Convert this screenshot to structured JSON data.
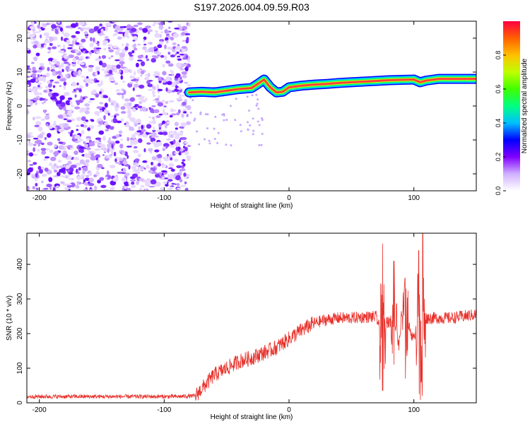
{
  "title": "S197.2026.004.09.59.R03",
  "chart_data": [
    {
      "type": "heatmap",
      "xlabel": "Height of straight line (km)",
      "ylabel": "Frequency (Hz)",
      "xlim": [
        -210,
        150
      ],
      "ylim": [
        -25,
        25
      ],
      "x_ticks": [
        -200,
        -100,
        0,
        100
      ],
      "x_tick_labels": [
        "-200",
        "-100",
        "0",
        "100"
      ],
      "y_ticks": [
        -20,
        -10,
        0,
        10,
        20
      ],
      "y_tick_labels": [
        "-20",
        "-10",
        "0",
        "10",
        "20"
      ],
      "colorbar": {
        "label": "Normalized spectral amplitude",
        "range": [
          0,
          1
        ],
        "ticks": [
          0,
          0.2,
          0.4,
          0.6,
          0.8
        ],
        "tick_labels": [
          "0.0",
          "0.2",
          "0.4",
          "0.6",
          "0.8"
        ],
        "stops": [
          "#ffffff",
          "#d0b0ff",
          "#8000ff",
          "#0000ff",
          "#00c0ff",
          "#00ff80",
          "#40ff00",
          "#c0ff00",
          "#ffc000",
          "#ff6000",
          "#ff0040"
        ]
      },
      "noise_region_x": [
        -210,
        -80
      ],
      "tone_track": [
        {
          "x": -80,
          "f": 4.0
        },
        {
          "x": -70,
          "f": 4.2
        },
        {
          "x": -60,
          "f": 4.0
        },
        {
          "x": -50,
          "f": 4.5
        },
        {
          "x": -40,
          "f": 5.0
        },
        {
          "x": -30,
          "f": 5.3
        },
        {
          "x": -25,
          "f": 6.5
        },
        {
          "x": -20,
          "f": 7.8
        },
        {
          "x": -15,
          "f": 5.5
        },
        {
          "x": -10,
          "f": 4.0
        },
        {
          "x": -5,
          "f": 4.2
        },
        {
          "x": 0,
          "f": 5.5
        },
        {
          "x": 10,
          "f": 6.0
        },
        {
          "x": 20,
          "f": 6.3
        },
        {
          "x": 30,
          "f": 6.5
        },
        {
          "x": 40,
          "f": 6.8
        },
        {
          "x": 50,
          "f": 7.0
        },
        {
          "x": 60,
          "f": 7.2
        },
        {
          "x": 70,
          "f": 7.4
        },
        {
          "x": 80,
          "f": 7.6
        },
        {
          "x": 90,
          "f": 7.7
        },
        {
          "x": 100,
          "f": 7.8
        },
        {
          "x": 105,
          "f": 7.0
        },
        {
          "x": 110,
          "f": 7.5
        },
        {
          "x": 120,
          "f": 8.0
        },
        {
          "x": 130,
          "f": 8.0
        },
        {
          "x": 140,
          "f": 8.0
        },
        {
          "x": 150,
          "f": 8.0
        }
      ]
    },
    {
      "type": "line",
      "xlabel": "Height of straight line (km)",
      "ylabel": "SNR (10 * v/v)",
      "xlim": [
        -210,
        150
      ],
      "ylim": [
        0,
        490
      ],
      "x_ticks": [
        -200,
        -100,
        0,
        100
      ],
      "x_tick_labels": [
        "-200",
        "-100",
        "0",
        "100"
      ],
      "y_ticks": [
        0,
        100,
        200,
        300,
        400
      ],
      "y_tick_labels": [
        "0",
        "100",
        "200",
        "300",
        "400"
      ],
      "series": [
        {
          "name": "SNR",
          "color": "#e8302a",
          "x": [
            -210,
            -180,
            -150,
            -120,
            -90,
            -75,
            -65,
            -60,
            -50,
            -40,
            -30,
            -20,
            -10,
            0,
            10,
            20,
            30,
            40,
            50,
            60,
            70,
            75,
            78,
            80,
            85,
            88,
            90,
            95,
            100,
            103,
            105,
            108,
            110,
            120,
            130,
            140,
            150
          ],
          "values": [
            18,
            18,
            18,
            18,
            18,
            20,
            60,
            80,
            100,
            120,
            130,
            145,
            160,
            185,
            210,
            230,
            240,
            245,
            245,
            248,
            248,
            180,
            240,
            230,
            250,
            160,
            250,
            230,
            180,
            250,
            150,
            240,
            245,
            245,
            245,
            250,
            255
          ]
        }
      ],
      "spikes": [
        {
          "x": 75,
          "max": 460,
          "min": 35
        },
        {
          "x": 84,
          "max": 410,
          "min": 110
        },
        {
          "x": 93,
          "max": 360,
          "min": 70
        },
        {
          "x": 104,
          "max": 440,
          "min": 25
        },
        {
          "x": 107,
          "max": 490,
          "min": 20
        }
      ]
    }
  ]
}
